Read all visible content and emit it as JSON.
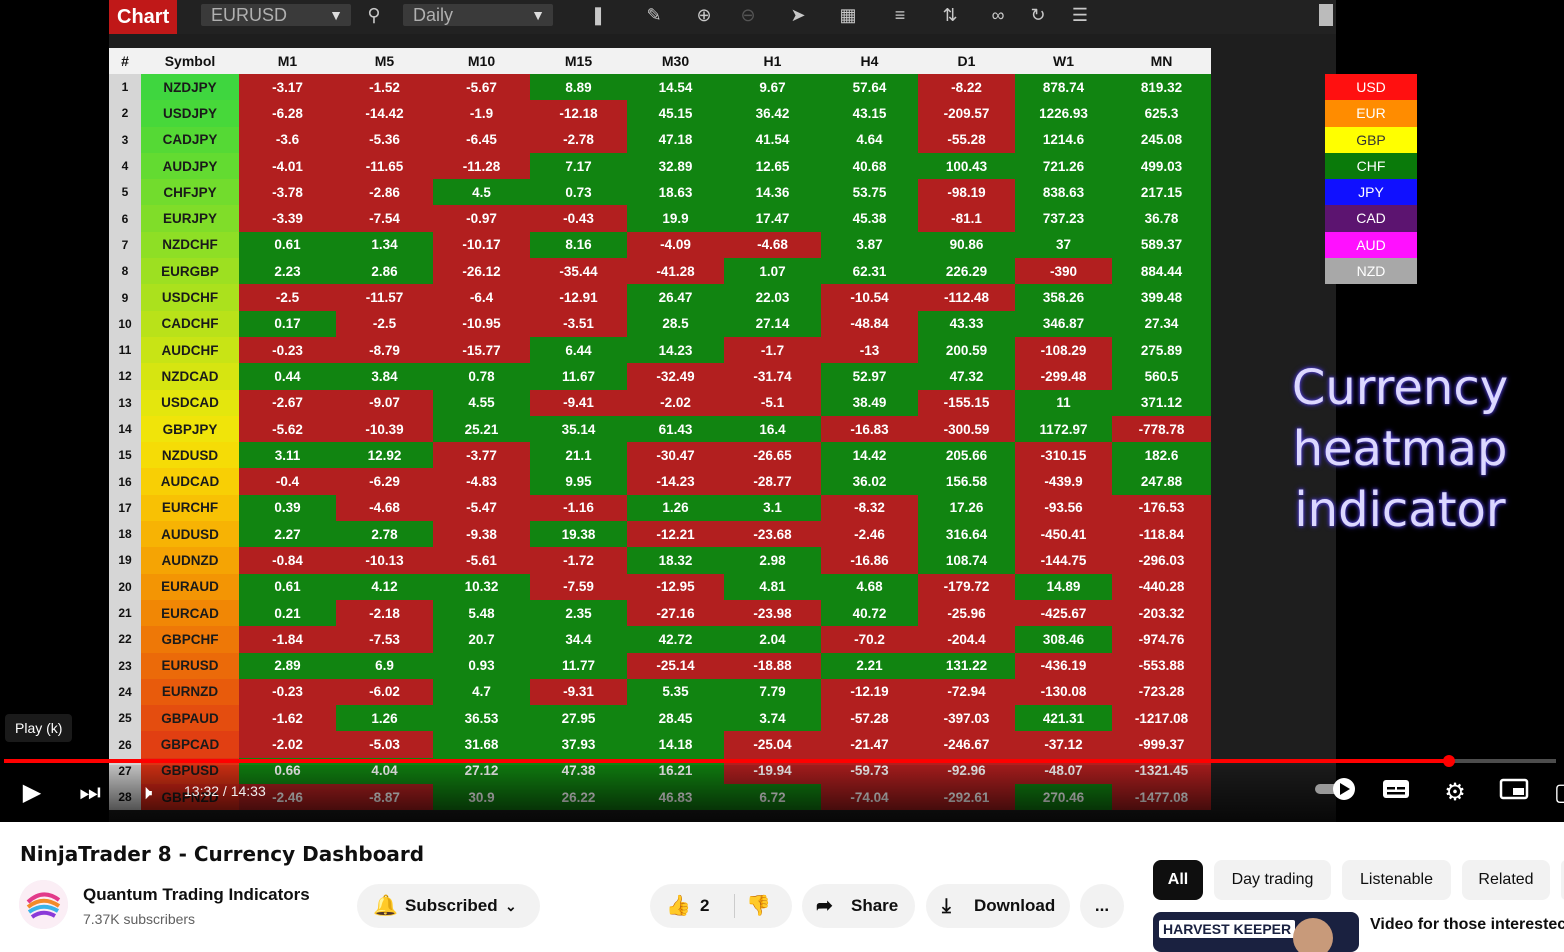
{
  "toolbar": {
    "title": "Chart",
    "instrument": "EURUSD",
    "period": "Daily"
  },
  "columns": [
    "#",
    "Symbol",
    "M1",
    "M5",
    "M10",
    "M15",
    "M30",
    "H1",
    "H4",
    "D1",
    "W1",
    "MN"
  ],
  "rows": [
    {
      "n": "1",
      "s": "NZDJPY",
      "v": [
        "-3.17",
        "-1.52",
        "-5.67",
        "8.89",
        "14.54",
        "9.67",
        "57.64",
        "-8.22",
        "878.74",
        "819.32"
      ]
    },
    {
      "n": "2",
      "s": "USDJPY",
      "v": [
        "-6.28",
        "-14.42",
        "-1.9",
        "-12.18",
        "45.15",
        "36.42",
        "43.15",
        "-209.57",
        "1226.93",
        "625.3"
      ]
    },
    {
      "n": "3",
      "s": "CADJPY",
      "v": [
        "-3.6",
        "-5.36",
        "-6.45",
        "-2.78",
        "47.18",
        "41.54",
        "4.64",
        "-55.28",
        "1214.6",
        "245.08"
      ]
    },
    {
      "n": "4",
      "s": "AUDJPY",
      "v": [
        "-4.01",
        "-11.65",
        "-11.28",
        "7.17",
        "32.89",
        "12.65",
        "40.68",
        "100.43",
        "721.26",
        "499.03"
      ]
    },
    {
      "n": "5",
      "s": "CHFJPY",
      "v": [
        "-3.78",
        "-2.86",
        "4.5",
        "0.73",
        "18.63",
        "14.36",
        "53.75",
        "-98.19",
        "838.63",
        "217.15"
      ]
    },
    {
      "n": "6",
      "s": "EURJPY",
      "v": [
        "-3.39",
        "-7.54",
        "-0.97",
        "-0.43",
        "19.9",
        "17.47",
        "45.38",
        "-81.1",
        "737.23",
        "36.78"
      ]
    },
    {
      "n": "7",
      "s": "NZDCHF",
      "v": [
        "0.61",
        "1.34",
        "-10.17",
        "8.16",
        "-4.09",
        "-4.68",
        "3.87",
        "90.86",
        "37",
        "589.37"
      ]
    },
    {
      "n": "8",
      "s": "EURGBP",
      "v": [
        "2.23",
        "2.86",
        "-26.12",
        "-35.44",
        "-41.28",
        "1.07",
        "62.31",
        "226.29",
        "-390",
        "884.44"
      ]
    },
    {
      "n": "9",
      "s": "USDCHF",
      "v": [
        "-2.5",
        "-11.57",
        "-6.4",
        "-12.91",
        "26.47",
        "22.03",
        "-10.54",
        "-112.48",
        "358.26",
        "399.48"
      ]
    },
    {
      "n": "10",
      "s": "CADCHF",
      "v": [
        "0.17",
        "-2.5",
        "-10.95",
        "-3.51",
        "28.5",
        "27.14",
        "-48.84",
        "43.33",
        "346.87",
        "27.34"
      ]
    },
    {
      "n": "11",
      "s": "AUDCHF",
      "v": [
        "-0.23",
        "-8.79",
        "-15.77",
        "6.44",
        "14.23",
        "-1.7",
        "-13",
        "200.59",
        "-108.29",
        "275.89"
      ]
    },
    {
      "n": "12",
      "s": "NZDCAD",
      "v": [
        "0.44",
        "3.84",
        "0.78",
        "11.67",
        "-32.49",
        "-31.74",
        "52.97",
        "47.32",
        "-299.48",
        "560.5"
      ]
    },
    {
      "n": "13",
      "s": "USDCAD",
      "v": [
        "-2.67",
        "-9.07",
        "4.55",
        "-9.41",
        "-2.02",
        "-5.1",
        "38.49",
        "-155.15",
        "11",
        "371.12"
      ]
    },
    {
      "n": "14",
      "s": "GBPJPY",
      "v": [
        "-5.62",
        "-10.39",
        "25.21",
        "35.14",
        "61.43",
        "16.4",
        "-16.83",
        "-300.59",
        "1172.97",
        "-778.78"
      ]
    },
    {
      "n": "15",
      "s": "NZDUSD",
      "v": [
        "3.11",
        "12.92",
        "-3.77",
        "21.1",
        "-30.47",
        "-26.65",
        "14.42",
        "205.66",
        "-310.15",
        "182.6"
      ]
    },
    {
      "n": "16",
      "s": "AUDCAD",
      "v": [
        "-0.4",
        "-6.29",
        "-4.83",
        "9.95",
        "-14.23",
        "-28.77",
        "36.02",
        "156.58",
        "-439.9",
        "247.88"
      ]
    },
    {
      "n": "17",
      "s": "EURCHF",
      "v": [
        "0.39",
        "-4.68",
        "-5.47",
        "-1.16",
        "1.26",
        "3.1",
        "-8.32",
        "17.26",
        "-93.56",
        "-176.53"
      ]
    },
    {
      "n": "18",
      "s": "AUDUSD",
      "v": [
        "2.27",
        "2.78",
        "-9.38",
        "19.38",
        "-12.21",
        "-23.68",
        "-2.46",
        "316.64",
        "-450.41",
        "-118.84"
      ]
    },
    {
      "n": "19",
      "s": "AUDNZD",
      "v": [
        "-0.84",
        "-10.13",
        "-5.61",
        "-1.72",
        "18.32",
        "2.98",
        "-16.86",
        "108.74",
        "-144.75",
        "-296.03"
      ]
    },
    {
      "n": "20",
      "s": "EURAUD",
      "v": [
        "0.61",
        "4.12",
        "10.32",
        "-7.59",
        "-12.95",
        "4.81",
        "4.68",
        "-179.72",
        "14.89",
        "-440.28"
      ]
    },
    {
      "n": "21",
      "s": "EURCAD",
      "v": [
        "0.21",
        "-2.18",
        "5.48",
        "2.35",
        "-27.16",
        "-23.98",
        "40.72",
        "-25.96",
        "-425.67",
        "-203.32"
      ]
    },
    {
      "n": "22",
      "s": "GBPCHF",
      "v": [
        "-1.84",
        "-7.53",
        "20.7",
        "34.4",
        "42.72",
        "2.04",
        "-70.2",
        "-204.4",
        "308.46",
        "-974.76"
      ]
    },
    {
      "n": "23",
      "s": "EURUSD",
      "v": [
        "2.89",
        "6.9",
        "0.93",
        "11.77",
        "-25.14",
        "-18.88",
        "2.21",
        "131.22",
        "-436.19",
        "-553.88"
      ]
    },
    {
      "n": "24",
      "s": "EURNZD",
      "v": [
        "-0.23",
        "-6.02",
        "4.7",
        "-9.31",
        "5.35",
        "7.79",
        "-12.19",
        "-72.94",
        "-130.08",
        "-723.28"
      ]
    },
    {
      "n": "25",
      "s": "GBPAUD",
      "v": [
        "-1.62",
        "1.26",
        "36.53",
        "27.95",
        "28.45",
        "3.74",
        "-57.28",
        "-397.03",
        "421.31",
        "-1217.08"
      ]
    },
    {
      "n": "26",
      "s": "GBPCAD",
      "v": [
        "-2.02",
        "-5.03",
        "31.68",
        "37.93",
        "14.18",
        "-25.04",
        "-21.47",
        "-246.67",
        "-37.12",
        "-999.37"
      ]
    },
    {
      "n": "27",
      "s": "GBPUSD",
      "v": [
        "0.66",
        "4.04",
        "27.12",
        "47.38",
        "16.21",
        "-19.94",
        "-59.73",
        "-92.96",
        "-48.07",
        "-1321.45"
      ]
    },
    {
      "n": "28",
      "s": "GBPNZD",
      "v": [
        "-2.46",
        "-8.87",
        "30.9",
        "26.22",
        "46.83",
        "6.72",
        "-74.04",
        "-292.61",
        "270.46",
        "-1477.08"
      ]
    }
  ],
  "symbol_colors": [
    "#3fd63f",
    "#47d83a",
    "#55d935",
    "#63db31",
    "#72dc2d",
    "#80dd29",
    "#8edf25",
    "#9de021",
    "#abe11d",
    "#b9e219",
    "#c8e415",
    "#d6e511",
    "#e4e60d",
    "#f0e40a",
    "#f5dc06",
    "#f8cf05",
    "#f8c104",
    "#f7b304",
    "#f5a404",
    "#f39504",
    "#f18705",
    "#ee7807",
    "#eb6a09",
    "#e85b0c",
    "#e44d0f",
    "#e13f12",
    "#dd3214",
    "#d92616"
  ],
  "legend": [
    {
      "label": "USD",
      "color": "#ff1010"
    },
    {
      "label": "EUR",
      "color": "#ff8c00"
    },
    {
      "label": "GBP",
      "color": "#ffff00"
    },
    {
      "label": "CHF",
      "color": "#0a7a0a"
    },
    {
      "label": "JPY",
      "color": "#1010ff"
    },
    {
      "label": "CAD",
      "color": "#5c1470"
    },
    {
      "label": "AUD",
      "color": "#ff10ff"
    },
    {
      "label": "NZD",
      "color": "#a8a8a8"
    }
  ],
  "overlay": {
    "line1": "Currency",
    "line2": "heatmap",
    "line3": "indicator"
  },
  "player": {
    "tooltip": "Play (k)",
    "time": "13:32 / 14:33",
    "progress": 0.931
  },
  "video": {
    "title": "NinjaTrader 8 - Currency Dashboard",
    "channel": "Quantum Trading Indicators",
    "subscribers": "7.37K subscribers"
  },
  "actions": {
    "subscribed": "Subscribed",
    "likes": "2",
    "share": "Share",
    "download": "Download",
    "more": "..."
  },
  "chips": [
    "All",
    "Day trading",
    "Listenable",
    "Related"
  ],
  "recommendation": {
    "thumb_text": "HARVEST KEEPER",
    "title": "Video for those interestec"
  }
}
